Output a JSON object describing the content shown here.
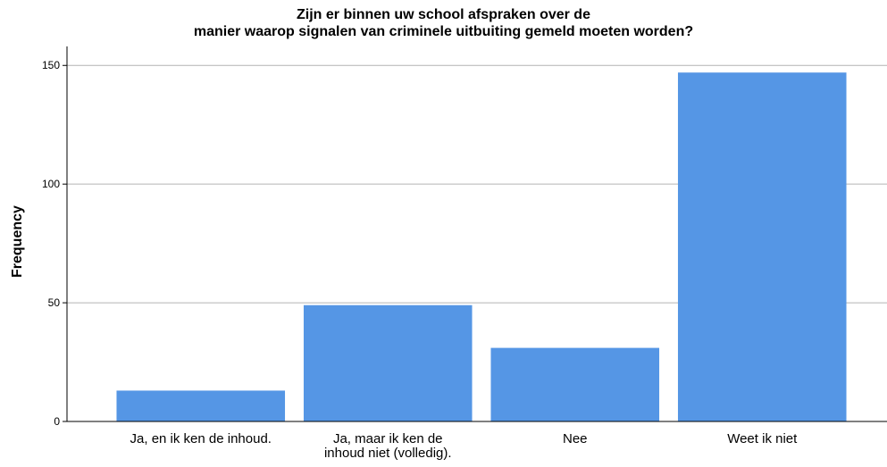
{
  "chart_data": {
    "type": "bar",
    "title": [
      "Zijn er binnen uw school afspraken over de",
      "manier waarop signalen van criminele uitbuiting gemeld moeten worden?"
    ],
    "y_label": "Frequency",
    "categories": [
      "Ja, en ik ken de inhoud.",
      "Ja, maar ik ken de\ninhoud niet (volledig).",
      "Nee",
      "Weet ik niet"
    ],
    "values": [
      13,
      49,
      31,
      147
    ],
    "color": "#5596e5",
    "ylim": [
      0,
      158
    ],
    "yticks": [
      0,
      50,
      100,
      150
    ],
    "grid": true
  }
}
